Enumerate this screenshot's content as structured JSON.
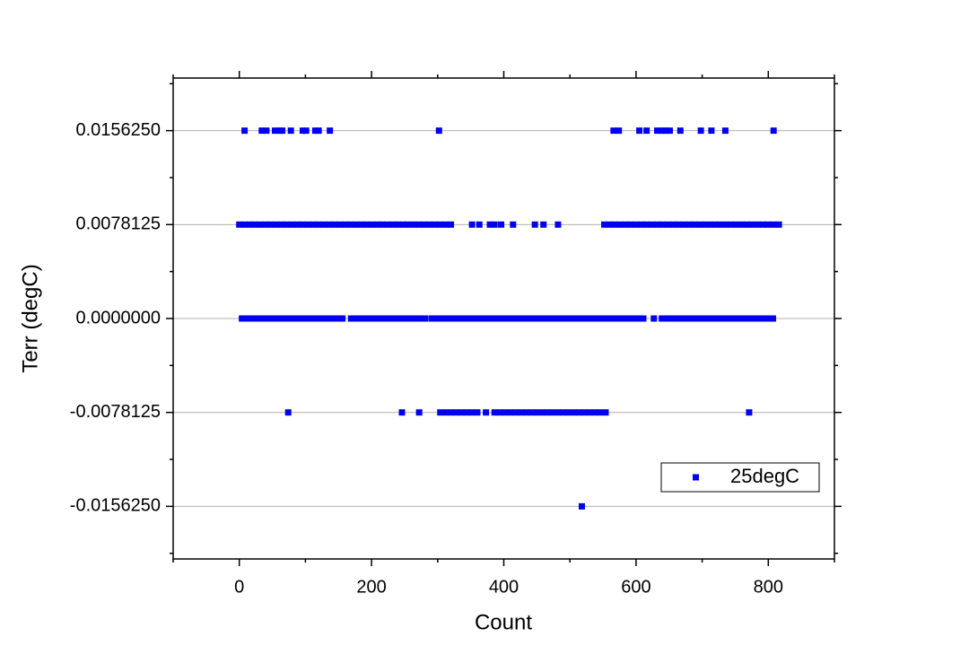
{
  "chart_data": {
    "type": "scatter",
    "xlabel": "Count",
    "ylabel": "Terr (degC)",
    "xlim": [
      -100,
      900
    ],
    "ylim": [
      -0.02,
      0.02
    ],
    "xticks": [
      0,
      200,
      400,
      600,
      800
    ],
    "xminorticks": [
      -100,
      100,
      300,
      500,
      700,
      900
    ],
    "yticks": [
      {
        "value": -0.015625,
        "label": "-0.0156250"
      },
      {
        "value": -0.0078125,
        "label": "-0.0078125"
      },
      {
        "value": 0,
        "label": "0.0000000"
      },
      {
        "value": 0.0078125,
        "label": "0.0078125"
      },
      {
        "value": 0.015625,
        "label": "0.0156250"
      }
    ],
    "yminorticks": [
      -0.01953125,
      -0.01171875,
      -0.00390625,
      0.00390625,
      0.01171875,
      0.01953125
    ],
    "grid": true,
    "legend": "lower right",
    "series": [
      {
        "name": "25degC",
        "color": "#0000ee",
        "levels": [
          {
            "y": 0.015625,
            "x": [
              8,
              34,
              41,
              54,
              61,
              65,
              78,
              96,
              101,
              115,
              120,
              137,
              302,
              566,
              574,
              605,
              616,
              632,
              639,
              645,
              651,
              667,
              698,
              714,
              735,
              808
            ]
          },
          {
            "y": 0.0078125,
            "x": [
              0,
              8,
              16,
              24,
              32,
              40,
              48,
              56,
              64,
              72,
              80,
              88,
              96,
              104,
              112,
              120,
              128,
              136,
              144,
              152,
              160,
              168,
              176,
              184,
              192,
              200,
              208,
              216,
              224,
              232,
              240,
              248,
              256,
              264,
              272,
              280,
              288,
              296,
              304,
              312,
              320,
              352,
              363,
              379,
              386,
              396,
              414,
              447,
              460,
              482,
              552,
              560,
              568,
              576,
              584,
              592,
              600,
              608,
              616,
              624,
              632,
              640,
              648,
              656,
              664,
              672,
              680,
              688,
              696,
              704,
              712,
              720,
              728,
              736,
              744,
              752,
              760,
              768,
              776,
              784,
              792,
              800,
              808,
              816
            ]
          },
          {
            "y": 0,
            "x": [
              4,
              12,
              20,
              28,
              36,
              44,
              52,
              60,
              68,
              76,
              84,
              92,
              100,
              108,
              116,
              124,
              132,
              140,
              148,
              156,
              169,
              177,
              185,
              193,
              201,
              209,
              217,
              225,
              233,
              241,
              249,
              257,
              265,
              273,
              281,
              291,
              299,
              307,
              315,
              323,
              331,
              339,
              347,
              355,
              363,
              371,
              379,
              387,
              395,
              403,
              411,
              419,
              427,
              435,
              443,
              451,
              459,
              467,
              475,
              483,
              491,
              499,
              507,
              515,
              523,
              531,
              539,
              547,
              555,
              563,
              571,
              579,
              587,
              595,
              603,
              611,
              627,
              639,
              647,
              655,
              663,
              671,
              679,
              687,
              695,
              703,
              711,
              719,
              727,
              735,
              743,
              751,
              759,
              767,
              775,
              783,
              791,
              799,
              807
            ]
          },
          {
            "y": -0.0078125,
            "x": [
              74,
              246,
              272,
              304,
              312,
              320,
              328,
              336,
              344,
              352,
              360,
              373,
              386,
              394,
              402,
              410,
              418,
              426,
              434,
              442,
              450,
              458,
              466,
              474,
              482,
              490,
              498,
              506,
              514,
              522,
              530,
              538,
              546,
              554,
              771
            ]
          },
          {
            "y": -0.015625,
            "x": [
              518
            ]
          }
        ]
      }
    ]
  }
}
